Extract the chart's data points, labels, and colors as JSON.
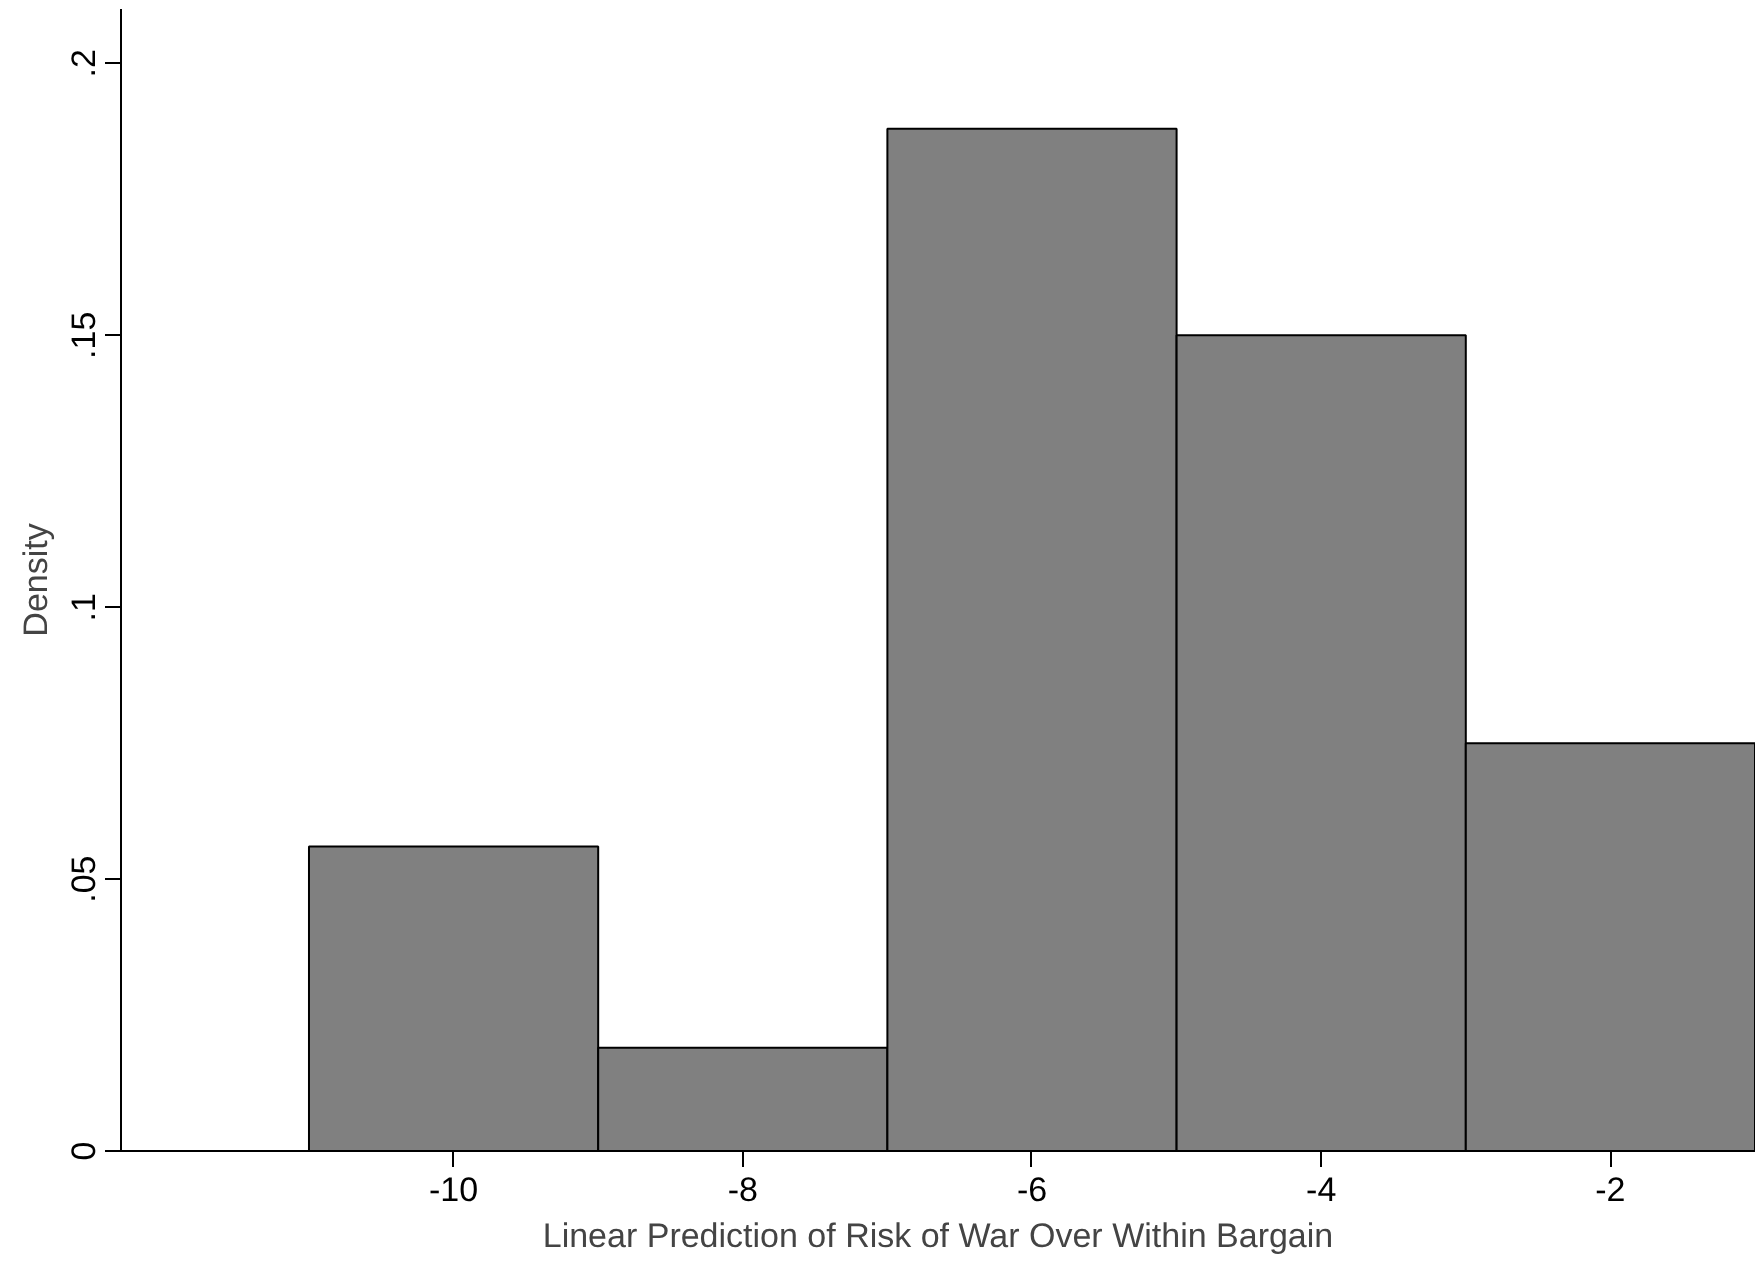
{
  "chart_data": {
    "type": "histogram",
    "xlabel": "Linear Prediction of Risk of War Over Within Bargain",
    "ylabel": "Density",
    "bins": [
      -11,
      -9,
      -7,
      -5,
      -3,
      -1
    ],
    "values": [
      0.056,
      0.019,
      0.188,
      0.15,
      0.075
    ],
    "color": "#808080",
    "xlim": [
      -12.3,
      -1
    ],
    "ylim": [
      0,
      0.21
    ],
    "xticks": [
      -10,
      -8,
      -6,
      -4,
      -2
    ],
    "yticks": [
      {
        "value": 0,
        "label": "0"
      },
      {
        "value": 0.05,
        "label": ".05"
      },
      {
        "value": 0.1,
        "label": ".1"
      },
      {
        "value": 0.15,
        "label": ".15"
      },
      {
        "value": 0.2,
        "label": ".2"
      }
    ],
    "grid": false
  }
}
